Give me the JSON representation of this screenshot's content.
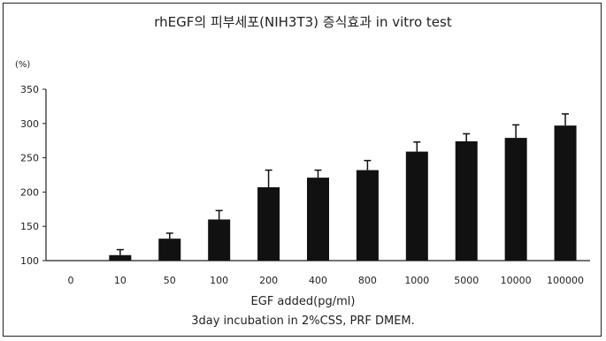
{
  "chart_data": {
    "type": "bar",
    "title": "rhEGF의 피부세포(NIH3T3) 증식효과 in vitro test",
    "ylabel": "(%)",
    "xlabel": "EGF added(pg/ml)",
    "note": "3day incubation in 2%CSS, PRF DMEM.",
    "categories": [
      "0",
      "10",
      "50",
      "100",
      "200",
      "400",
      "800",
      "1000",
      "5000",
      "10000",
      "100000"
    ],
    "values": [
      100,
      108,
      132,
      160,
      207,
      221,
      232,
      259,
      274,
      279,
      297
    ],
    "errors": [
      0,
      8,
      8,
      13,
      25,
      11,
      14,
      14,
      11,
      19,
      17
    ],
    "ylim": [
      100,
      350
    ],
    "yticks": [
      100,
      150,
      200,
      250,
      300,
      350
    ],
    "grid": false,
    "bar_color": "#111111"
  }
}
